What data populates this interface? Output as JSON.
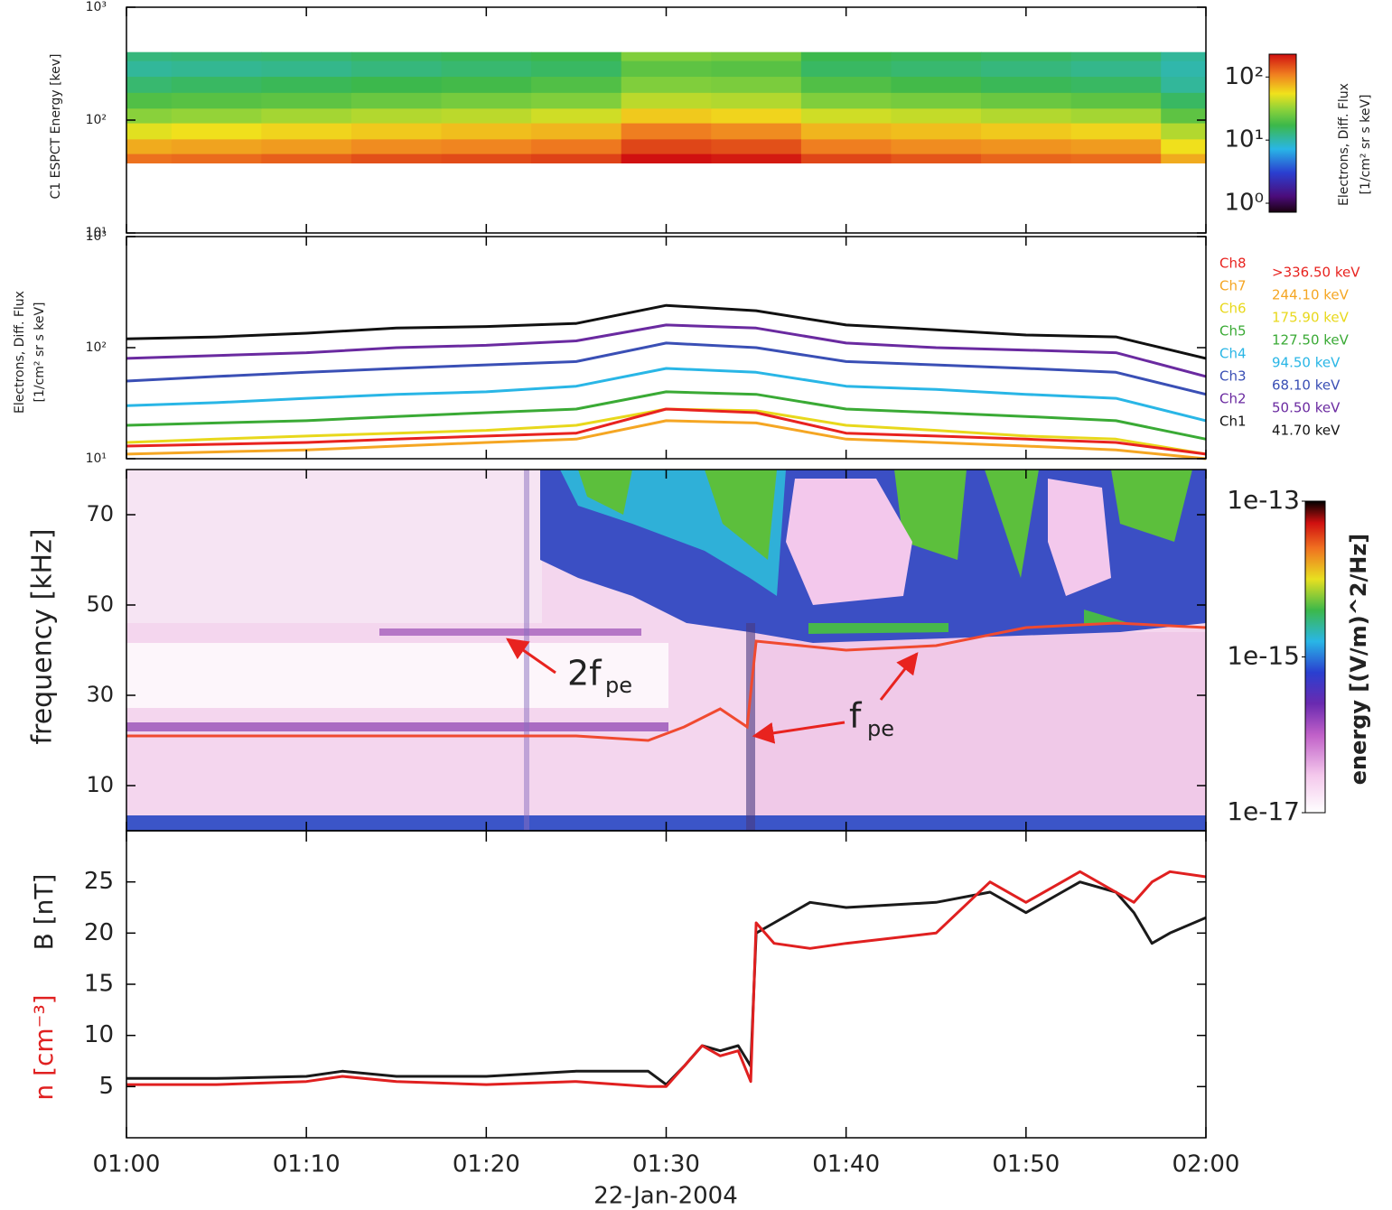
{
  "chart_data": [
    {
      "type": "heatmap",
      "ylabel": "C1 ESPCT Energy [kev]",
      "log_y": true,
      "ylim": [
        10,
        1000
      ],
      "yticks": [
        {
          "value": 10,
          "label": "10¹"
        },
        {
          "value": 100,
          "label": "10²"
        },
        {
          "value": 1000,
          "label": "10³"
        }
      ],
      "clabel": [
        "Electrons, Diff. Flux",
        "[1/cm² sr s keV]"
      ],
      "clim": [
        0.72,
        230
      ],
      "cticks": [
        {
          "value": 1,
          "label": "10⁰"
        },
        {
          "value": 10,
          "label": "10¹"
        },
        {
          "value": 100,
          "label": "10²"
        }
      ]
    },
    {
      "type": "line",
      "log_y": true,
      "ylabel": [
        "Electrons, Diff. Flux",
        "[1/cm² sr s keV]"
      ],
      "ylim": [
        10,
        1000
      ],
      "yticks": [
        {
          "value": 10,
          "label": "10¹"
        },
        {
          "value": 100,
          "label": "10²"
        },
        {
          "value": 1000,
          "label": "10³"
        }
      ],
      "x": [
        0,
        5,
        10,
        15,
        20,
        25,
        30,
        35,
        40,
        45,
        50,
        55,
        60
      ],
      "series": [
        {
          "name": "Ch1",
          "energy": {
            "value": 41.7,
            "label": "41.70 keV"
          },
          "color": "#111111",
          "values": [
            120,
            125,
            135,
            150,
            155,
            165,
            240,
            215,
            160,
            145,
            130,
            125,
            80
          ]
        },
        {
          "name": "Ch2",
          "energy": {
            "value": 50.5,
            "label": "50.50 keV"
          },
          "color": "#6a2aa0",
          "values": [
            80,
            85,
            90,
            100,
            105,
            115,
            160,
            150,
            110,
            100,
            95,
            90,
            55
          ]
        },
        {
          "name": "Ch3",
          "energy": {
            "value": 68.1,
            "label": "68.10 keV"
          },
          "color": "#3a4fb5",
          "values": [
            50,
            55,
            60,
            65,
            70,
            75,
            110,
            100,
            75,
            70,
            65,
            60,
            38
          ]
        },
        {
          "name": "Ch4",
          "energy": {
            "value": 94.5,
            "label": "94.50 keV"
          },
          "color": "#29b6e6",
          "values": [
            30,
            32,
            35,
            38,
            40,
            45,
            65,
            60,
            45,
            42,
            38,
            35,
            22
          ]
        },
        {
          "name": "Ch5",
          "energy": {
            "value": 127.5,
            "label": "127.50 keV"
          },
          "color": "#3aaa35",
          "values": [
            20,
            21,
            22,
            24,
            26,
            28,
            40,
            38,
            28,
            26,
            24,
            22,
            15
          ]
        },
        {
          "name": "Ch6",
          "energy": {
            "value": 175.9,
            "label": "175.90 keV"
          },
          "color": "#e8d81c",
          "values": [
            14,
            15,
            16,
            17,
            18,
            20,
            28,
            27,
            20,
            18,
            16,
            15,
            11
          ]
        },
        {
          "name": "Ch7",
          "energy": {
            "value": 244.1,
            "label": "244.10 keV"
          },
          "color": "#f5a623",
          "values": [
            11,
            11.5,
            12,
            13,
            14,
            15,
            22,
            21,
            15,
            14,
            13,
            12,
            10
          ]
        },
        {
          "name": "Ch8",
          "energy": {
            "value": 336.5,
            "label": ">336.50 keV"
          },
          "color": "#e8231f",
          "values": [
            13,
            13.5,
            14,
            15,
            16,
            17,
            28,
            26,
            17,
            16,
            15,
            14,
            11
          ]
        }
      ]
    },
    {
      "type": "spectrogram",
      "ylabel": "frequency [kHz]",
      "ylim": [
        0,
        80
      ],
      "yticks": [
        10,
        30,
        50,
        70
      ],
      "clabel": "energy [(V/m)^2/Hz]",
      "clim": [
        1e-17,
        1e-13
      ],
      "cticks": [
        1e-13,
        1e-15,
        1e-17
      ],
      "line": {
        "color": "#f04a30",
        "x": [
          0,
          5,
          10,
          15,
          20,
          25,
          29,
          31,
          33,
          34.5,
          35,
          40,
          45,
          50,
          55,
          60
        ],
        "values": [
          21,
          21,
          21,
          21,
          21,
          21,
          20,
          23,
          27,
          23,
          42,
          40,
          41,
          45,
          46,
          45
        ]
      },
      "annotations": [
        {
          "text": "2f",
          "sub": "pe"
        },
        {
          "text": "f",
          "sub": "pe"
        }
      ]
    },
    {
      "type": "line",
      "ylim": [
        0,
        30
      ],
      "yticks": [
        5,
        10,
        15,
        20,
        25
      ],
      "xlim": [
        0,
        60
      ],
      "xticks": [
        {
          "value": 0,
          "label": "01:00"
        },
        {
          "value": 10,
          "label": "01:10"
        },
        {
          "value": 20,
          "label": "01:20"
        },
        {
          "value": 30,
          "label": "01:30"
        },
        {
          "value": 40,
          "label": "01:40"
        },
        {
          "value": 50,
          "label": "01:50"
        },
        {
          "value": 60,
          "label": "02:00"
        }
      ],
      "xlabel": "22-Jan-2004",
      "series": [
        {
          "name": "B [nT]",
          "color": "#1a1a1a",
          "x": [
            0,
            5,
            10,
            12,
            15,
            20,
            25,
            29,
            30,
            31,
            32,
            33,
            34,
            34.7,
            35,
            36,
            38,
            40,
            45,
            48,
            50,
            52,
            53,
            55,
            56,
            57,
            58,
            60
          ],
          "values": [
            5.8,
            5.8,
            6,
            6.5,
            6,
            6,
            6.5,
            6.5,
            5.2,
            7,
            9,
            8.5,
            9,
            7,
            20,
            21,
            23,
            22.5,
            23,
            24,
            22,
            24,
            25,
            24,
            22,
            19,
            20,
            21.5
          ]
        },
        {
          "name": "n [cm⁻³]",
          "color": "#e02020",
          "x": [
            0,
            5,
            10,
            12,
            15,
            20,
            25,
            29,
            30,
            31,
            32,
            33,
            34,
            34.7,
            35,
            36,
            38,
            40,
            45,
            48,
            50,
            52,
            53,
            55,
            56,
            57,
            58,
            60
          ],
          "values": [
            5.2,
            5.2,
            5.5,
            6,
            5.5,
            5.2,
            5.5,
            5,
            5,
            7,
            9,
            8,
            8.5,
            5.5,
            21,
            19,
            18.5,
            19,
            20,
            25,
            23,
            25,
            26,
            24,
            23,
            25,
            26,
            25.5
          ]
        }
      ]
    }
  ]
}
